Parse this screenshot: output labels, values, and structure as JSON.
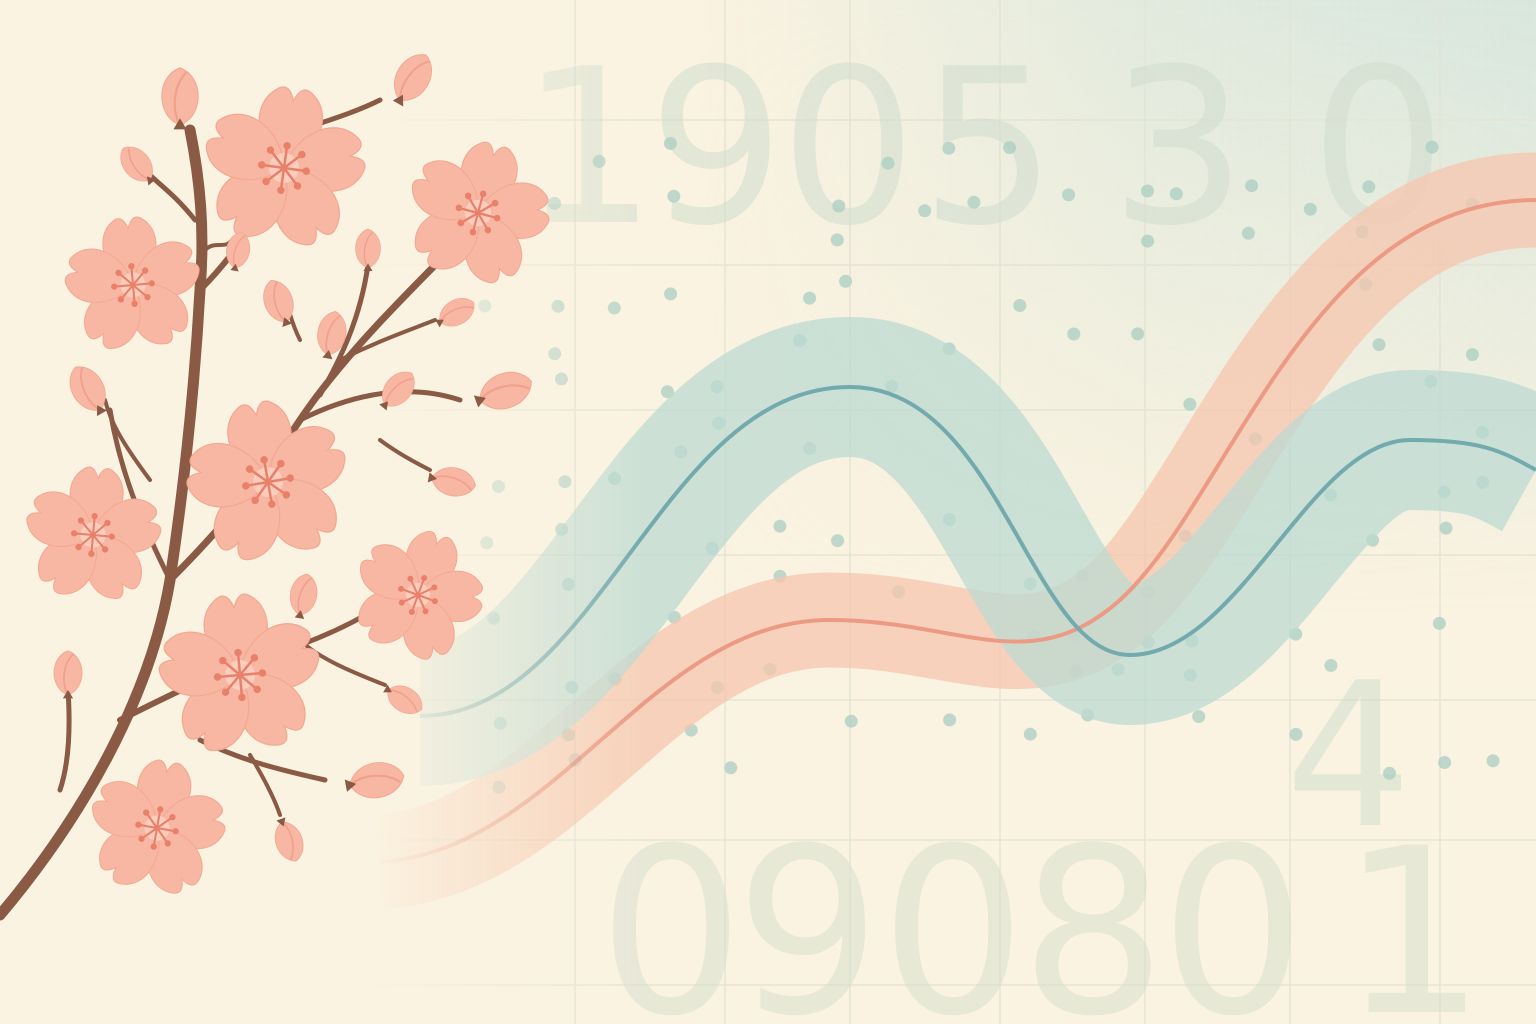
{
  "scene": {
    "top_digits": [
      "1",
      "9",
      "0",
      "5",
      "3",
      "0"
    ],
    "bottom_digits": [
      "0",
      "9",
      "0",
      "8",
      "0",
      "1"
    ],
    "side_digit": "4",
    "colors": {
      "background": "#fbf3e1",
      "teal_line": "#72aaae",
      "teal_band": "#bcd9d2",
      "salmon_line": "#ec9a84",
      "salmon_band": "#f6c6ae",
      "petal": "#f8b7a3",
      "petal_light": "#fbcdbd",
      "stamen": "#e8806a",
      "branch": "#8a5a45",
      "dot": "#a9cdc2",
      "digit": "#cfdccd",
      "grid": "#e6e5d6"
    },
    "icons": [
      "cherry-blossom-branch",
      "teal-wave",
      "salmon-wave",
      "dot-pattern",
      "grid"
    ]
  }
}
